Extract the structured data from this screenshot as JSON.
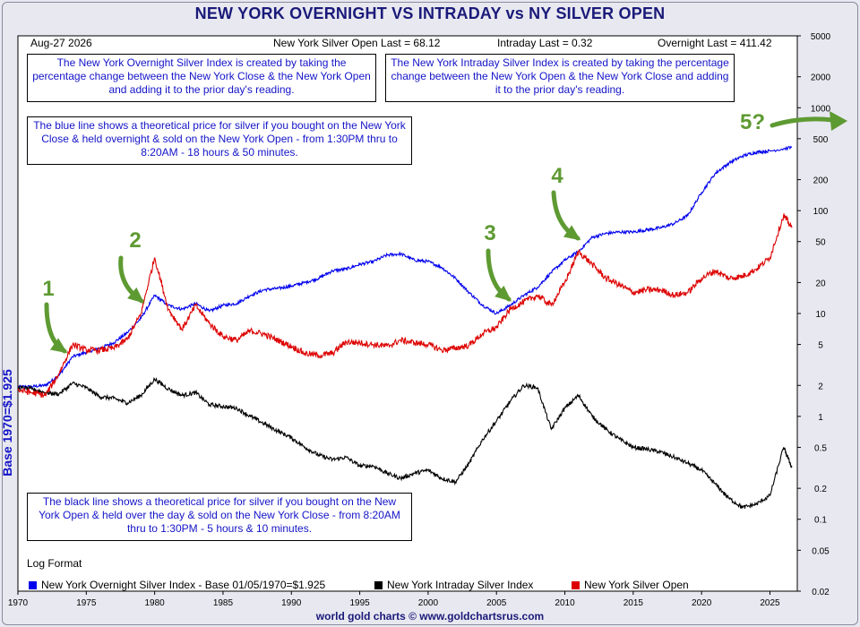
{
  "title": "NEW YORK OVERNIGHT VS INTRADAY vs NY SILVER OPEN",
  "header": {
    "date": "Aug-27  2026",
    "silver_open_last": "New York Silver Open Last = 68.12",
    "intraday_last": "Intraday Last = 0.32",
    "overnight_last": "Overnight Last = 411.42"
  },
  "notes": {
    "overnight": "The New York Overnight Silver Index is created by taking the percentage change between the New York Close & the New York Open and adding it to the prior day's reading.",
    "intraday": "The New York Intraday Silver Index is created by taking the percentage change between the New York Open & the New York Close and adding it to the prior day's reading.",
    "blue_line": "The blue line shows a theoretical price for silver if you bought on the New York Close & held overnight & sold on the New York Open - from 1:30PM thru to 8:20AM - 18 hours & 50 minutes.",
    "black_line": "The black line shows a theoretical price for silver if you bought on the New York Open & held over the day & sold on the New York Close - from 8:20AM thru to 1:30PM - 5 hours & 10 minutes."
  },
  "y_axis_label": "Base 1970=$1.925",
  "log_format_label": "Log Format",
  "footer": "world gold charts © www.goldchartsrus.com",
  "colors": {
    "overnight": "#0000ee",
    "intraday": "#000000",
    "silver_open": "#dd0000",
    "arrow": "#5e9a32"
  },
  "chart_data": {
    "type": "line",
    "y_scale": "log",
    "ylim": [
      0.02,
      5000
    ],
    "xlim": [
      1970,
      2027
    ],
    "y_ticks": [
      5000,
      2000,
      1000,
      500,
      200,
      100,
      50,
      20,
      10,
      5,
      2,
      1,
      0.5,
      0.2,
      0.1,
      0.05,
      0.02
    ],
    "y_tick_labels": [
      "5000",
      "2000",
      "1000",
      "500",
      "200",
      "100",
      "50",
      "20",
      "10",
      "5",
      "2",
      "1",
      "0.5",
      "0.2",
      "0.1",
      "0.05",
      "0.02"
    ],
    "x_ticks": [
      1970,
      1975,
      1980,
      1985,
      1990,
      1995,
      2000,
      2005,
      2010,
      2015,
      2020,
      2025
    ],
    "x_tick_labels": [
      "1970",
      "1975",
      "1980",
      "1985",
      "1990",
      "1995",
      "2000",
      "2005",
      "2010",
      "2015",
      "2020",
      "2025"
    ],
    "grid": false,
    "legend_position": "bottom",
    "series": [
      {
        "name": "New York Overnight Silver Index - Base 01/05/1970=$1.925",
        "color": "#0000ee",
        "x": [
          1970,
          1971,
          1972,
          1973,
          1974,
          1975,
          1976,
          1977,
          1978,
          1979,
          1980,
          1981,
          1982,
          1983,
          1984,
          1985,
          1986,
          1987,
          1988,
          1989,
          1990,
          1991,
          1992,
          1993,
          1994,
          1995,
          1996,
          1997,
          1998,
          1999,
          2000,
          2001,
          2002,
          2003,
          2004,
          2005,
          2006,
          2007,
          2008,
          2009,
          2010,
          2011,
          2012,
          2013,
          2014,
          2015,
          2016,
          2017,
          2018,
          2019,
          2020,
          2021,
          2022,
          2023,
          2024,
          2025,
          2026.6
        ],
        "y": [
          1.93,
          1.95,
          2.0,
          2.5,
          3.8,
          4.2,
          4.6,
          5.2,
          6.5,
          9.0,
          15.0,
          12.0,
          11.0,
          12.5,
          10.5,
          12.0,
          12.5,
          15.0,
          17.0,
          17.5,
          18.5,
          20.0,
          22.0,
          26.0,
          27.0,
          30.0,
          32.0,
          37.0,
          38.0,
          33.0,
          32.0,
          28.0,
          22.0,
          16.0,
          12.0,
          10.0,
          12.0,
          15.0,
          18.0,
          25.0,
          33.0,
          40.0,
          55.0,
          60.0,
          62.0,
          62.0,
          65.0,
          68.0,
          75.0,
          90.0,
          150.0,
          230.0,
          290.0,
          340.0,
          370.0,
          380.0,
          411.42
        ]
      },
      {
        "name": "New York Intraday Silver Index",
        "color": "#000000",
        "x": [
          1970,
          1971,
          1972,
          1973,
          1974,
          1975,
          1976,
          1977,
          1978,
          1979,
          1980,
          1981,
          1982,
          1983,
          1984,
          1985,
          1986,
          1987,
          1988,
          1989,
          1990,
          1991,
          1992,
          1993,
          1994,
          1995,
          1996,
          1997,
          1998,
          1999,
          2000,
          2001,
          2002,
          2003,
          2004,
          2005,
          2006,
          2007,
          2008,
          2009,
          2010,
          2011,
          2012,
          2013,
          2014,
          2015,
          2016,
          2017,
          2018,
          2019,
          2020,
          2021,
          2022,
          2023,
          2024,
          2025,
          2026,
          2026.6
        ],
        "y": [
          1.9,
          1.85,
          1.7,
          1.65,
          2.1,
          1.9,
          1.55,
          1.5,
          1.35,
          1.6,
          2.3,
          1.85,
          1.6,
          1.7,
          1.3,
          1.25,
          1.2,
          1.0,
          0.85,
          0.72,
          0.62,
          0.5,
          0.42,
          0.38,
          0.4,
          0.33,
          0.33,
          0.28,
          0.25,
          0.28,
          0.3,
          0.25,
          0.23,
          0.35,
          0.6,
          0.9,
          1.4,
          2.0,
          1.9,
          0.75,
          1.2,
          1.6,
          1.0,
          0.75,
          0.6,
          0.5,
          0.48,
          0.45,
          0.4,
          0.35,
          0.3,
          0.22,
          0.16,
          0.13,
          0.14,
          0.17,
          0.5,
          0.32
        ]
      },
      {
        "name": "New York Silver Open",
        "color": "#dd0000",
        "x": [
          1970,
          1971,
          1972,
          1973,
          1974,
          1975,
          1976,
          1977,
          1978,
          1979,
          1980,
          1981,
          1982,
          1983,
          1984,
          1985,
          1986,
          1987,
          1988,
          1989,
          1990,
          1991,
          1992,
          1993,
          1994,
          1995,
          1996,
          1997,
          1998,
          1999,
          2000,
          2001,
          2002,
          2003,
          2004,
          2005,
          2006,
          2007,
          2008,
          2009,
          2010,
          2011,
          2012,
          2013,
          2014,
          2015,
          2016,
          2017,
          2018,
          2019,
          2020,
          2021,
          2022,
          2023,
          2024,
          2025,
          2026,
          2026.6
        ],
        "y": [
          1.8,
          1.7,
          1.6,
          2.6,
          5.0,
          4.4,
          4.4,
          4.6,
          5.6,
          10.0,
          35.0,
          11.0,
          7.0,
          12.0,
          8.0,
          6.0,
          5.5,
          6.8,
          6.3,
          5.5,
          4.8,
          4.1,
          3.9,
          4.1,
          5.3,
          5.2,
          5.0,
          4.8,
          5.5,
          5.2,
          5.0,
          4.4,
          4.6,
          4.9,
          6.4,
          7.3,
          11.0,
          13.0,
          15.0,
          12.0,
          20.0,
          40.0,
          30.0,
          22.0,
          19.0,
          16.0,
          17.0,
          17.0,
          15.0,
          16.0,
          22.0,
          26.0,
          22.0,
          23.0,
          27.0,
          35.0,
          90.0,
          68.12
        ]
      }
    ],
    "annotations": [
      "1",
      "2",
      "3",
      "4",
      "5?"
    ]
  }
}
